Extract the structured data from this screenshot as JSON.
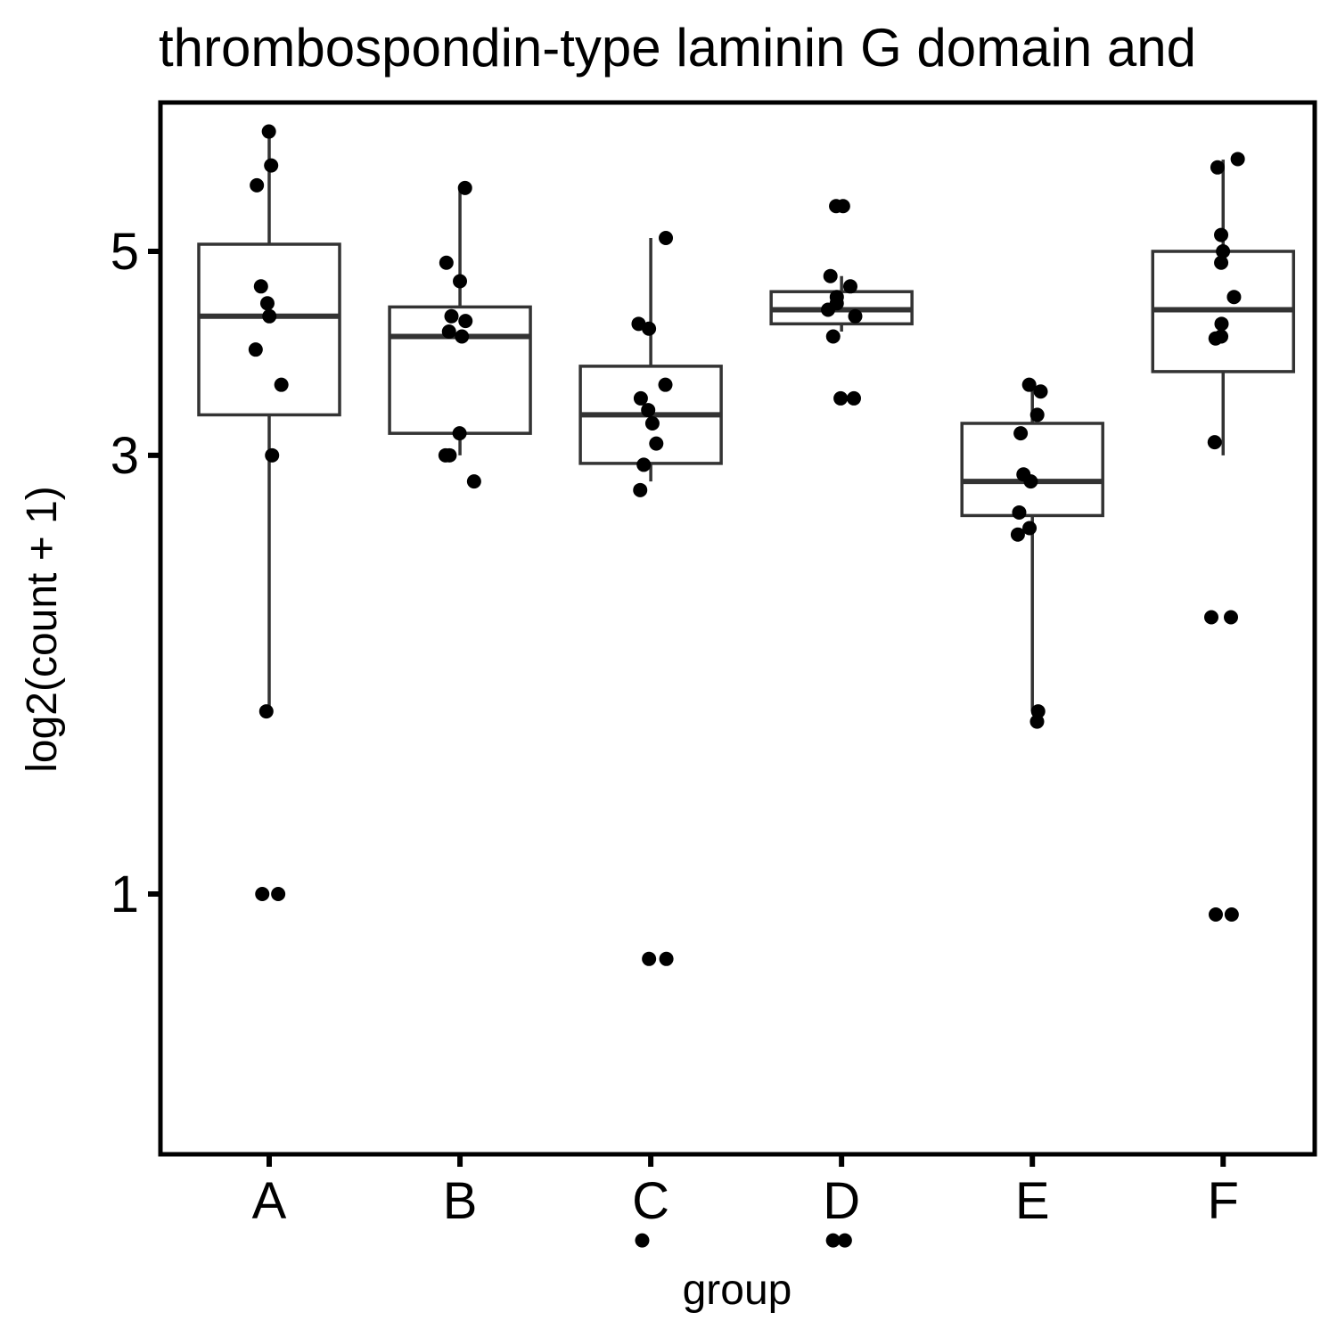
{
  "chart_data": {
    "type": "box",
    "title": "thrombospondin-type laminin G domain and",
    "xlabel": "group",
    "ylabel": "log2(count + 1)",
    "y_scale": "log",
    "y_ticks": [
      1,
      3,
      5
    ],
    "ylim": [
      0.42,
      7.0
    ],
    "grid": false,
    "legend": "none",
    "categories": [
      "A",
      "B",
      "C",
      "D",
      "E",
      "F"
    ],
    "boxes": [
      {
        "group": "A",
        "lower_whisker": 1.58,
        "q1": 3.32,
        "median": 4.25,
        "q3": 5.09,
        "upper_whisker": 6.75
      },
      {
        "group": "B",
        "lower_whisker": 3.0,
        "q1": 3.17,
        "median": 4.04,
        "q3": 4.35,
        "upper_whisker": 5.86
      },
      {
        "group": "C",
        "lower_whisker": 2.81,
        "q1": 2.94,
        "median": 3.32,
        "q3": 3.75,
        "upper_whisker": 5.17
      },
      {
        "group": "D",
        "lower_whisker": 4.09,
        "q1": 4.17,
        "median": 4.32,
        "q3": 4.52,
        "upper_whisker": 4.7
      },
      {
        "group": "E",
        "lower_whisker": 1.58,
        "q1": 2.58,
        "median": 2.81,
        "q3": 3.25,
        "upper_whisker": 3.58
      },
      {
        "group": "F",
        "lower_whisker": 3.0,
        "q1": 3.7,
        "median": 4.32,
        "q3": 5.0,
        "upper_whisker": 6.29
      }
    ],
    "points": [
      {
        "group": "A",
        "values": [
          6.75,
          6.2,
          5.9,
          4.58,
          4.39,
          4.25,
          3.91,
          3.58,
          3.0,
          1.58,
          1.0,
          1.0
        ]
      },
      {
        "group": "B",
        "values": [
          5.86,
          4.86,
          4.64,
          4.25,
          4.2,
          4.09,
          4.04,
          3.17,
          3.0,
          3.0,
          2.81
        ]
      },
      {
        "group": "C",
        "values": [
          5.17,
          4.17,
          4.12,
          3.58,
          3.46,
          3.36,
          3.25,
          3.09,
          2.93,
          2.75,
          0.85,
          0.85,
          0.42
        ]
      },
      {
        "group": "D",
        "values": [
          5.6,
          5.6,
          4.7,
          4.58,
          4.46,
          4.39,
          4.32,
          4.25,
          4.04,
          3.46,
          3.46,
          0.42,
          0.42
        ]
      },
      {
        "group": "E",
        "values": [
          3.58,
          3.52,
          3.32,
          3.17,
          2.86,
          2.81,
          2.6,
          2.46,
          2.5,
          1.58,
          1.54
        ]
      },
      {
        "group": "F",
        "values": [
          6.3,
          6.17,
          5.21,
          5.0,
          4.86,
          4.46,
          4.17,
          4.04,
          4.02,
          3.1,
          2.0,
          2.0,
          0.95,
          0.95
        ]
      }
    ]
  }
}
